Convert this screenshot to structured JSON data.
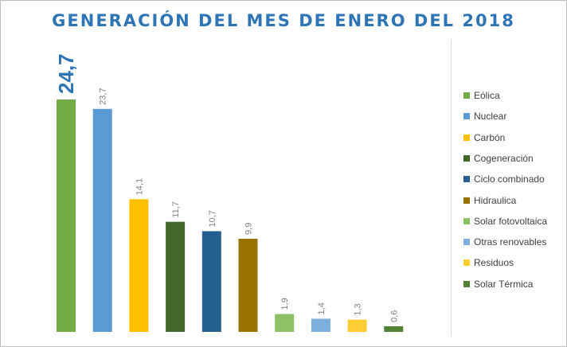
{
  "chart_data": {
    "type": "bar",
    "title": "GENERACIÓN DEL MES DE ENERO DEL 2018",
    "categories": [
      "Eólica",
      "Nuclear",
      "Carbón",
      "Cogeneración",
      "Ciclo combinado",
      "Hidraulica",
      "Solar fotovoltaica",
      "Otras renovables",
      "Residuos",
      "Solar Térmica"
    ],
    "values": [
      24.7,
      23.7,
      14.1,
      11.7,
      10.7,
      9.9,
      1.9,
      1.4,
      1.3,
      0.6
    ],
    "data_labels": [
      "24,7",
      "23,7",
      "14,1",
      "11,7",
      "10,7",
      "9,9",
      "1,9",
      "1,4",
      "1,3",
      "0,6"
    ],
    "colors": [
      "#70ad47",
      "#5b9bd5",
      "#ffc000",
      "#43682b",
      "#255e91",
      "#997300",
      "#8cc168",
      "#7cafdd",
      "#ffcd33",
      "#548235"
    ],
    "highlight_label_color": "#2e75b6",
    "data_label_color": "#7f7f7f",
    "ylim": [
      0,
      25
    ],
    "xlabel": "",
    "ylabel": "",
    "grid": false,
    "legend_position": "right",
    "label_orientation": "vertical"
  }
}
